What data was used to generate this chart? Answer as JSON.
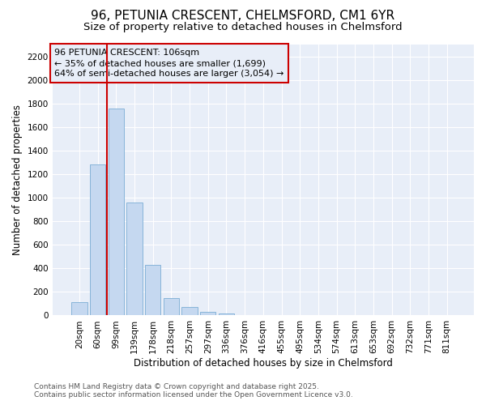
{
  "title_line1": "96, PETUNIA CRESCENT, CHELMSFORD, CM1 6YR",
  "title_line2": "Size of property relative to detached houses in Chelmsford",
  "xlabel": "Distribution of detached houses by size in Chelmsford",
  "ylabel": "Number of detached properties",
  "categories": [
    "20sqm",
    "60sqm",
    "99sqm",
    "139sqm",
    "178sqm",
    "218sqm",
    "257sqm",
    "297sqm",
    "336sqm",
    "376sqm",
    "416sqm",
    "455sqm",
    "495sqm",
    "534sqm",
    "574sqm",
    "613sqm",
    "653sqm",
    "692sqm",
    "732sqm",
    "771sqm",
    "811sqm"
  ],
  "values": [
    110,
    1280,
    1760,
    960,
    430,
    150,
    70,
    30,
    20,
    0,
    0,
    0,
    0,
    0,
    0,
    0,
    0,
    0,
    0,
    0,
    0
  ],
  "bar_color": "#c5d8f0",
  "bar_edge_color": "#7aadd4",
  "vline_x": 1.5,
  "vline_color": "#cc0000",
  "annotation_text": "96 PETUNIA CRESCENT: 106sqm\n← 35% of detached houses are smaller (1,699)\n64% of semi-detached houses are larger (3,054) →",
  "annotation_box_color": "#cc0000",
  "ylim": [
    0,
    2300
  ],
  "yticks": [
    0,
    200,
    400,
    600,
    800,
    1000,
    1200,
    1400,
    1600,
    1800,
    2000,
    2200
  ],
  "plot_bg_color": "#e8eef8",
  "figure_bg_color": "#ffffff",
  "grid_color": "#ffffff",
  "title_fontsize": 11,
  "subtitle_fontsize": 9.5,
  "axis_label_fontsize": 8.5,
  "tick_fontsize": 7.5,
  "annotation_fontsize": 8,
  "footer_fontsize": 6.5
}
